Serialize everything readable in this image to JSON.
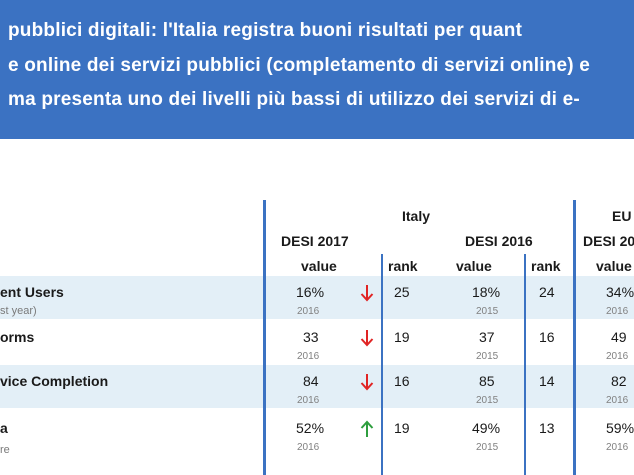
{
  "header": {
    "bg": "#3b72c2",
    "lines": [
      "pubblici digitali: l'Italia registra buoni risultati per quant",
      "e online dei servizi pubblici (completamento di servizi online) e",
      " ma presenta uno dei livelli più bassi di utilizzo dei servizi di e-"
    ]
  },
  "table": {
    "italy_label": "Italy",
    "eu_label": "EU",
    "desi2017": "DESI 2017",
    "desi2016": "DESI 2016",
    "desi_eu": "DESI 20",
    "col_value": "value",
    "col_rank": "rank",
    "col_value_eu": "value",
    "rows": [
      {
        "label": "ent Users",
        "sub": "st year)",
        "v2017": "16%",
        "y2017": "2016",
        "trend": "down",
        "r2017": "25",
        "v2016": "18%",
        "y2016": "2015",
        "r2016": "24",
        "veu": "34%",
        "yeu": "2016"
      },
      {
        "label": "orms",
        "sub": "",
        "v2017": "33",
        "y2017": "2016",
        "trend": "down",
        "r2017": "19",
        "v2016": "37",
        "y2016": "2015",
        "r2016": "16",
        "veu": "49",
        "yeu": "2016"
      },
      {
        "label": "vice Completion",
        "sub": "",
        "v2017": "84",
        "y2017": "2016",
        "trend": "down",
        "r2017": "16",
        "v2016": "85",
        "y2016": "2015",
        "r2016": "14",
        "veu": "82",
        "yeu": "2016"
      },
      {
        "label": "a",
        "sub": "re",
        "v2017": "52%",
        "y2017": "2016",
        "trend": "up",
        "r2017": "19",
        "v2016": "49%",
        "y2016": "2015",
        "r2016": "13",
        "veu": "59%",
        "yeu": "2016"
      }
    ]
  },
  "colors": {
    "accent": "#3b72c2",
    "band": "#e3eff7",
    "down": "#e02424",
    "up": "#2e9e3e"
  }
}
